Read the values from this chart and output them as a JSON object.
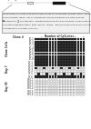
{
  "title_gene": "p15 gene",
  "title_exon": "Exon 1",
  "num_cpg": 18,
  "header_clone": "Clone #",
  "header_cpg": "Number of CpG sites",
  "groups": [
    {
      "label": "Clone Cells",
      "clones": [
        {
          "name": "PC-1",
          "methylated": [
            1,
            1,
            1,
            1,
            1,
            1,
            1,
            1,
            1,
            1,
            1,
            1,
            1,
            1,
            1,
            1,
            1,
            1
          ]
        },
        {
          "name": "PC-2",
          "methylated": [
            1,
            1,
            1,
            1,
            1,
            1,
            1,
            1,
            1,
            1,
            1,
            1,
            1,
            1,
            1,
            1,
            1,
            1
          ]
        },
        {
          "name": "PC-3",
          "methylated": [
            1,
            1,
            1,
            1,
            1,
            1,
            1,
            1,
            1,
            1,
            1,
            1,
            1,
            1,
            1,
            1,
            1,
            1
          ]
        },
        {
          "name": "PC-4",
          "methylated": [
            1,
            1,
            1,
            1,
            1,
            1,
            1,
            1,
            1,
            1,
            1,
            1,
            1,
            1,
            1,
            1,
            1,
            1
          ]
        },
        {
          "name": "PC-5",
          "methylated": [
            1,
            1,
            1,
            1,
            1,
            1,
            1,
            1,
            1,
            1,
            1,
            1,
            1,
            1,
            1,
            1,
            1,
            1
          ]
        },
        {
          "name": "PC-6",
          "methylated": [
            1,
            1,
            1,
            1,
            1,
            1,
            1,
            1,
            1,
            1,
            1,
            1,
            1,
            1,
            1,
            1,
            1,
            1
          ]
        },
        {
          "name": "PC-7",
          "methylated": [
            1,
            1,
            1,
            1,
            1,
            1,
            1,
            1,
            1,
            1,
            1,
            1,
            1,
            1,
            1,
            1,
            1,
            1
          ]
        },
        {
          "name": "PC-8",
          "methylated": [
            1,
            1,
            1,
            1,
            1,
            1,
            1,
            1,
            1,
            1,
            1,
            1,
            1,
            1,
            1,
            1,
            1,
            1
          ]
        }
      ]
    },
    {
      "label": "Day 7",
      "clones": [
        {
          "name": "D7-1",
          "methylated": [
            1,
            1,
            1,
            1,
            1,
            1,
            1,
            1,
            1,
            1,
            1,
            1,
            1,
            1,
            1,
            1,
            1,
            1
          ]
        },
        {
          "name": "D7-2",
          "methylated": [
            1,
            1,
            1,
            1,
            1,
            1,
            1,
            1,
            1,
            1,
            1,
            1,
            1,
            1,
            1,
            1,
            1,
            1
          ]
        },
        {
          "name": "D7-3",
          "methylated": [
            1,
            0,
            0,
            1,
            0,
            0,
            1,
            0,
            0,
            1,
            0,
            0,
            1,
            0,
            0,
            1,
            0,
            0
          ]
        },
        {
          "name": "D7-4",
          "methylated": [
            0,
            0,
            0,
            0,
            0,
            0,
            0,
            0,
            0,
            0,
            0,
            0,
            0,
            0,
            0,
            0,
            0,
            0
          ]
        },
        {
          "name": "D7-5",
          "methylated": [
            0,
            1,
            0,
            0,
            1,
            0,
            0,
            1,
            0,
            0,
            1,
            0,
            0,
            1,
            0,
            0,
            1,
            0
          ]
        },
        {
          "name": "D7-6",
          "methylated": [
            1,
            1,
            1,
            1,
            1,
            1,
            1,
            1,
            1,
            1,
            1,
            1,
            1,
            1,
            1,
            1,
            1,
            1
          ]
        }
      ]
    },
    {
      "label": "Day 30",
      "clones": [
        {
          "name": "D30-1",
          "methylated": [
            0,
            0,
            0,
            0,
            0,
            0,
            0,
            0,
            0,
            0,
            0,
            0,
            0,
            0,
            0,
            0,
            0,
            0
          ]
        },
        {
          "name": "D30-2",
          "methylated": [
            0,
            0,
            0,
            0,
            0,
            0,
            0,
            0,
            0,
            0,
            0,
            0,
            0,
            0,
            0,
            0,
            0,
            0
          ]
        },
        {
          "name": "D30-3",
          "methylated": [
            0,
            0,
            0,
            0,
            0,
            0,
            0,
            0,
            0,
            0,
            0,
            0,
            0,
            0,
            0,
            0,
            0,
            0
          ]
        },
        {
          "name": "D30-4",
          "methylated": [
            0,
            0,
            0,
            0,
            0,
            0,
            0,
            0,
            0,
            0,
            0,
            0,
            0,
            0,
            0,
            0,
            0,
            0
          ]
        },
        {
          "name": "D30-5",
          "methylated": [
            0,
            0,
            0,
            0,
            0,
            0,
            0,
            0,
            0,
            0,
            0,
            0,
            0,
            0,
            0,
            0,
            0,
            0
          ]
        },
        {
          "name": "D30-6",
          "methylated": [
            0,
            0,
            0,
            0,
            0,
            0,
            0,
            0,
            0,
            0,
            0,
            0,
            0,
            0,
            0,
            0,
            0,
            0
          ]
        }
      ]
    }
  ],
  "filled_color": "#1a1a1a",
  "empty_color": "#ffffff",
  "border_color": "#555555",
  "bg_color": "#ffffff",
  "gene_bar_color": "#aaaaaa",
  "exon_color": "#111111",
  "text_box_bg": "#f0f0f0",
  "text_box_border": "#888888"
}
